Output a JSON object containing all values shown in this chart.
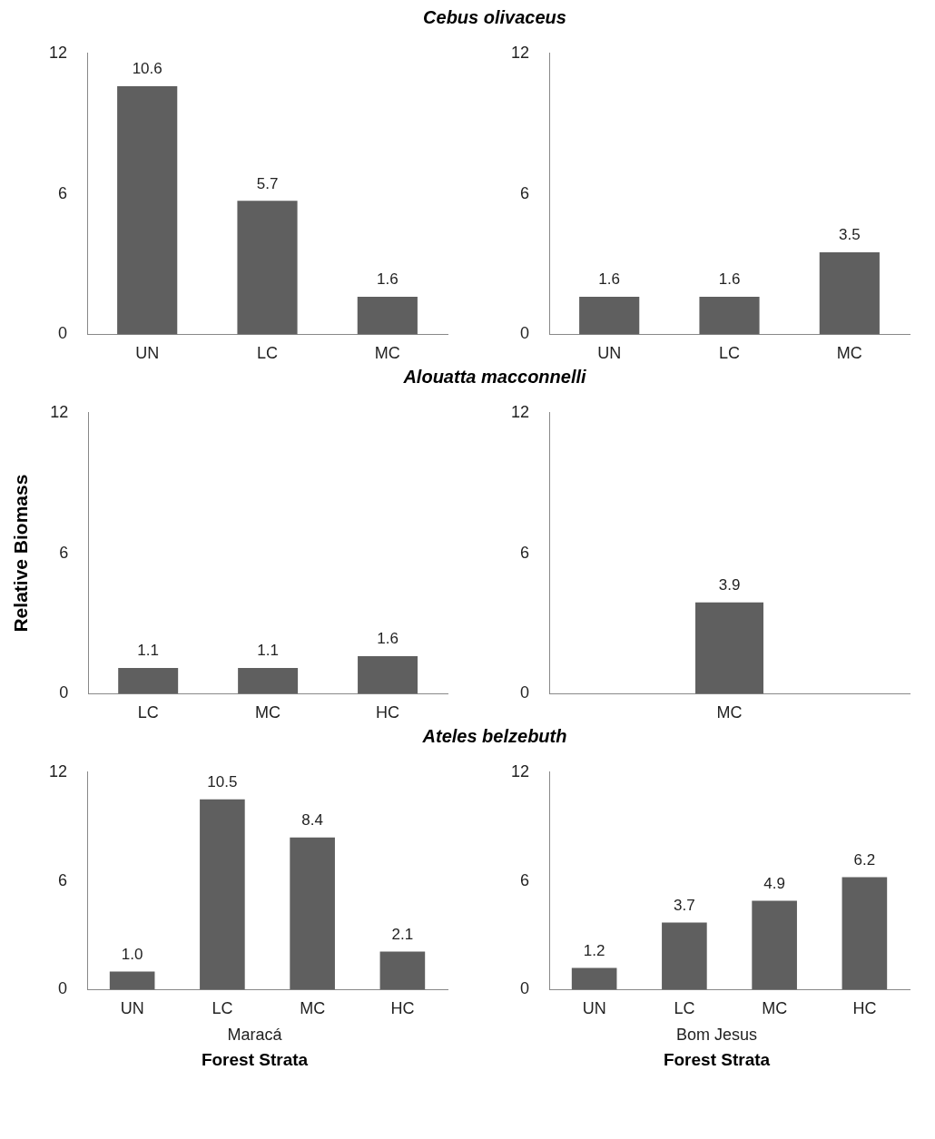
{
  "chart_data": [
    {
      "type": "bar",
      "title": "Cebus olivaceus",
      "categories": [
        "UN",
        "LC",
        "MC"
      ],
      "values": [
        10.6,
        5.7,
        1.6
      ],
      "value_labels": [
        "10.6",
        "5.7",
        "1.6"
      ],
      "color": "#5f5f5f",
      "ylim": [
        0,
        12
      ],
      "yticks": [
        0,
        6,
        12
      ],
      "grid": false,
      "legend": false
    },
    {
      "type": "bar",
      "categories": [
        "UN",
        "LC",
        "MC"
      ],
      "values": [
        1.6,
        1.6,
        3.5
      ],
      "value_labels": [
        "1.6",
        "1.6",
        "3.5"
      ],
      "color": "#5f5f5f",
      "ylim": [
        0,
        12
      ],
      "yticks": [
        0,
        6,
        12
      ],
      "grid": false,
      "legend": false
    },
    {
      "type": "bar",
      "title": "Alouatta macconnelli",
      "ylabel": "Relative Biomass",
      "categories": [
        "LC",
        "MC",
        "HC"
      ],
      "values": [
        1.1,
        1.1,
        1.6
      ],
      "value_labels": [
        "1.1",
        "1.1",
        "1.6"
      ],
      "color": "#5f5f5f",
      "ylim": [
        0,
        12
      ],
      "yticks": [
        0,
        6,
        12
      ],
      "grid": false,
      "legend": false
    },
    {
      "type": "bar",
      "categories": [
        "MC"
      ],
      "values": [
        3.9
      ],
      "value_labels": [
        "3.9"
      ],
      "color": "#5f5f5f",
      "ylim": [
        0,
        12
      ],
      "yticks": [
        0,
        6,
        12
      ],
      "grid": false,
      "legend": false
    },
    {
      "type": "bar",
      "title": "Ateles belzebuth",
      "xlabel": "Forest Strata",
      "annotations": [
        "Maracá"
      ],
      "categories": [
        "UN",
        "LC",
        "MC",
        "HC"
      ],
      "values": [
        1.0,
        10.5,
        8.4,
        2.1
      ],
      "value_labels": [
        "1.0",
        "10.5",
        "8.4",
        "2.1"
      ],
      "color": "#5f5f5f",
      "ylim": [
        0,
        12
      ],
      "yticks": [
        0,
        6,
        12
      ],
      "grid": false,
      "legend": false
    },
    {
      "type": "bar",
      "xlabel": "Forest Strata",
      "annotations": [
        "Bom Jesus"
      ],
      "categories": [
        "UN",
        "LC",
        "MC",
        "HC"
      ],
      "values": [
        1.2,
        3.7,
        4.9,
        6.2
      ],
      "value_labels": [
        "1.2",
        "3.7",
        "4.9",
        "6.2"
      ],
      "color": "#5f5f5f",
      "ylim": [
        0,
        12
      ],
      "yticks": [
        0,
        6,
        12
      ],
      "grid": false,
      "legend": false
    }
  ]
}
